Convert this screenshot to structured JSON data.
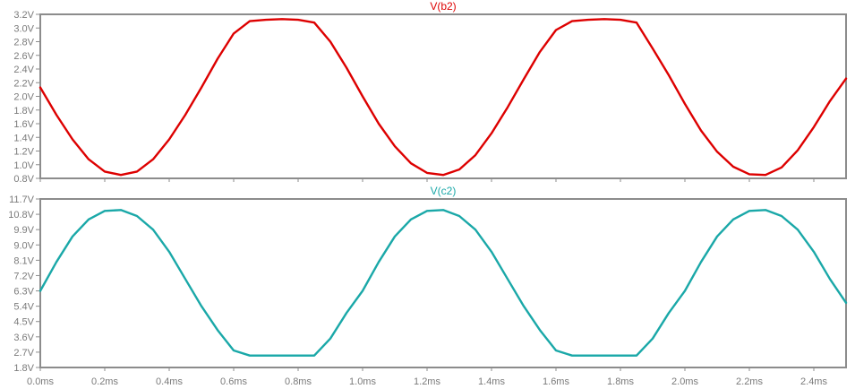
{
  "chart_data": [
    {
      "type": "line",
      "title": "V(b2)",
      "color": "#dd0000",
      "ylim": [
        0.8,
        3.2
      ],
      "xlim": [
        0,
        2.5
      ],
      "y_ticks": [
        "0.8V",
        "1.0V",
        "1.2V",
        "1.4V",
        "1.6V",
        "1.8V",
        "2.0V",
        "2.2V",
        "2.4V",
        "2.6V",
        "2.8V",
        "3.0V",
        "3.2V"
      ],
      "y_tick_values": [
        0.8,
        1.0,
        1.2,
        1.4,
        1.6,
        1.8,
        2.0,
        2.2,
        2.4,
        2.6,
        2.8,
        3.0,
        3.2
      ],
      "series": [
        {
          "x": [
            0,
            0.05,
            0.1,
            0.15,
            0.2,
            0.25,
            0.3,
            0.35,
            0.4,
            0.45,
            0.5,
            0.55,
            0.6,
            0.65,
            0.7,
            0.75,
            0.8,
            0.85,
            0.9,
            0.95,
            1.0,
            1.05,
            1.1,
            1.15,
            1.2,
            1.25,
            1.3,
            1.35,
            1.4,
            1.45,
            1.5,
            1.55,
            1.6,
            1.65,
            1.7,
            1.75,
            1.8,
            1.85,
            1.9,
            1.95,
            2.0,
            2.05,
            2.1,
            2.15,
            2.2,
            2.25,
            2.3,
            2.35,
            2.4,
            2.45,
            2.5
          ],
          "values": [
            2.13,
            1.73,
            1.37,
            1.08,
            0.9,
            0.85,
            0.9,
            1.08,
            1.37,
            1.73,
            2.13,
            2.55,
            2.92,
            3.1,
            3.12,
            3.13,
            3.12,
            3.08,
            2.8,
            2.42,
            2.0,
            1.6,
            1.27,
            1.02,
            0.88,
            0.85,
            0.93,
            1.14,
            1.46,
            1.84,
            2.25,
            2.65,
            2.97,
            3.1,
            3.12,
            3.13,
            3.12,
            3.08,
            2.7,
            2.31,
            1.89,
            1.5,
            1.19,
            0.97,
            0.86,
            0.85,
            0.96,
            1.21,
            1.55,
            1.93,
            2.26
          ]
        }
      ]
    },
    {
      "type": "line",
      "title": "V(c2)",
      "color": "#1aa8a8",
      "ylim": [
        1.8,
        11.7
      ],
      "xlim": [
        0,
        2.5
      ],
      "y_ticks": [
        "1.8V",
        "2.7V",
        "3.6V",
        "4.5V",
        "5.4V",
        "6.3V",
        "7.2V",
        "8.1V",
        "9.0V",
        "9.9V",
        "10.8V",
        "11.7V"
      ],
      "y_tick_values": [
        1.8,
        2.7,
        3.6,
        4.5,
        5.4,
        6.3,
        7.2,
        8.1,
        9.0,
        9.9,
        10.8,
        11.7
      ],
      "series": [
        {
          "x": [
            0,
            0.05,
            0.1,
            0.15,
            0.2,
            0.25,
            0.3,
            0.35,
            0.4,
            0.45,
            0.5,
            0.55,
            0.6,
            0.65,
            0.7,
            0.75,
            0.8,
            0.85,
            0.9,
            0.95,
            1.0,
            1.05,
            1.1,
            1.15,
            1.2,
            1.25,
            1.3,
            1.35,
            1.4,
            1.45,
            1.5,
            1.55,
            1.6,
            1.65,
            1.7,
            1.75,
            1.8,
            1.85,
            1.9,
            1.95,
            2.0,
            2.05,
            2.1,
            2.15,
            2.2,
            2.25,
            2.3,
            2.35,
            2.4,
            2.45,
            2.5
          ],
          "values": [
            6.3,
            8.0,
            9.5,
            10.5,
            11.0,
            11.05,
            10.7,
            9.9,
            8.6,
            7.0,
            5.4,
            4.0,
            2.8,
            2.5,
            2.5,
            2.5,
            2.5,
            2.5,
            3.5,
            5.0,
            6.3,
            8.0,
            9.5,
            10.5,
            11.0,
            11.05,
            10.7,
            9.9,
            8.6,
            7.0,
            5.4,
            4.0,
            2.8,
            2.5,
            2.5,
            2.5,
            2.5,
            2.5,
            3.5,
            5.0,
            6.3,
            8.0,
            9.5,
            10.5,
            11.0,
            11.05,
            10.7,
            9.9,
            8.6,
            7.0,
            5.6
          ]
        }
      ]
    }
  ],
  "x_axis": {
    "ticks": [
      "0.0ms",
      "0.2ms",
      "0.4ms",
      "0.6ms",
      "0.8ms",
      "1.0ms",
      "1.2ms",
      "1.4ms",
      "1.6ms",
      "1.8ms",
      "2.0ms",
      "2.2ms",
      "2.4ms"
    ],
    "tick_values": [
      0,
      0.2,
      0.4,
      0.6,
      0.8,
      1.0,
      1.2,
      1.4,
      1.6,
      1.8,
      2.0,
      2.2,
      2.4
    ]
  },
  "frame_color": "#8c8c8c"
}
